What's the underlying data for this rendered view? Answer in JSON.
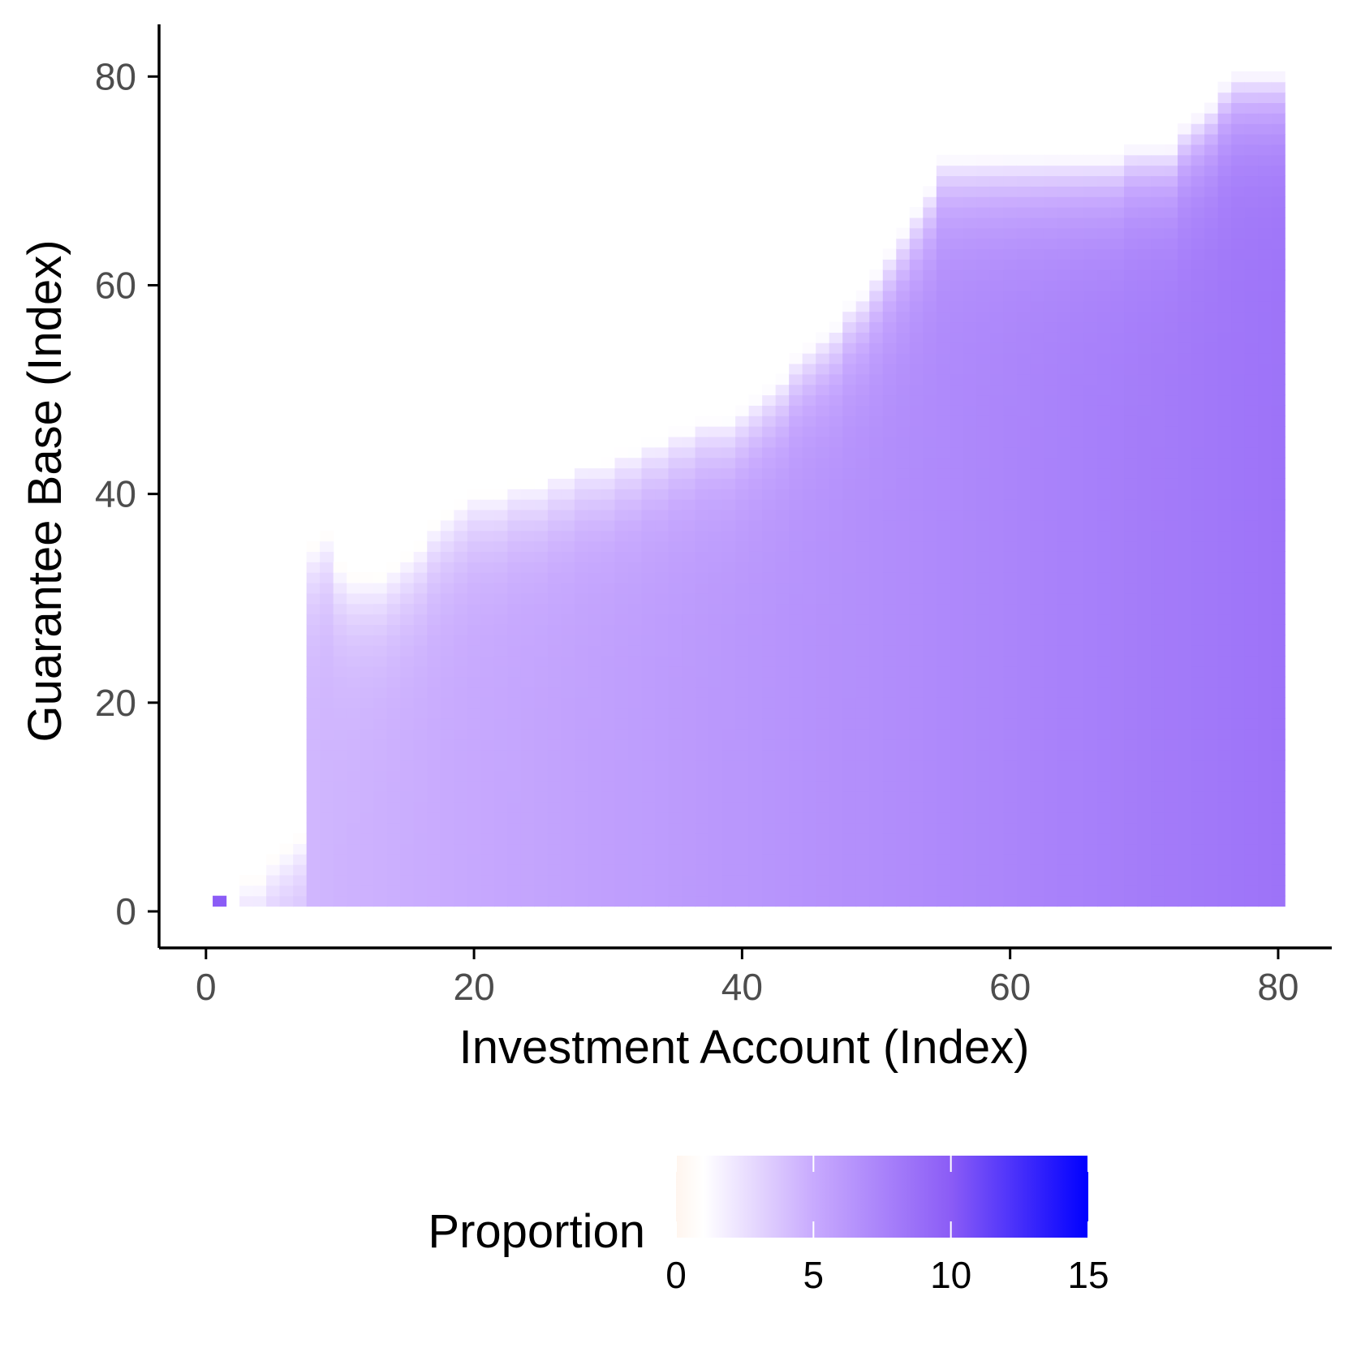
{
  "chart_data": {
    "type": "heatmap",
    "title": "",
    "xlabel": "Investment Account (Index)",
    "ylabel": "Guarantee Base (Index)",
    "xlim": [
      -3.5,
      84
    ],
    "ylim": [
      -3.5,
      85
    ],
    "x_ticks": [
      0,
      20,
      40,
      60,
      80
    ],
    "x_tick_labels": [
      "0",
      "20",
      "40",
      "60",
      "80"
    ],
    "y_ticks": [
      0,
      20,
      40,
      60,
      80
    ],
    "y_tick_labels": [
      "0",
      "20",
      "40",
      "60",
      "80"
    ],
    "grid": false,
    "cells": "one tile per integer x from 1 to 80 and integer y from 1 up to the upper boundary; fill = proportion value",
    "upper_boundary": [
      [
        1,
        1
      ],
      [
        2,
        0
      ],
      [
        3,
        3
      ],
      [
        4,
        3
      ],
      [
        5,
        5
      ],
      [
        6,
        6
      ],
      [
        7,
        7
      ],
      [
        8,
        35
      ],
      [
        9,
        36
      ],
      [
        10,
        33
      ],
      [
        11,
        32
      ],
      [
        12,
        32
      ],
      [
        13,
        32
      ],
      [
        14,
        33
      ],
      [
        15,
        34
      ],
      [
        16,
        35
      ],
      [
        17,
        37
      ],
      [
        18,
        38
      ],
      [
        19,
        39
      ],
      [
        20,
        40
      ],
      [
        21,
        40
      ],
      [
        22,
        40
      ],
      [
        23,
        41
      ],
      [
        24,
        41
      ],
      [
        25,
        41
      ],
      [
        26,
        42
      ],
      [
        27,
        42
      ],
      [
        28,
        43
      ],
      [
        29,
        43
      ],
      [
        30,
        43
      ],
      [
        31,
        44
      ],
      [
        32,
        44
      ],
      [
        33,
        45
      ],
      [
        34,
        45
      ],
      [
        35,
        46
      ],
      [
        36,
        46
      ],
      [
        37,
        47
      ],
      [
        38,
        47
      ],
      [
        39,
        47
      ],
      [
        40,
        48
      ],
      [
        41,
        49
      ],
      [
        42,
        50
      ],
      [
        43,
        51
      ],
      [
        44,
        53
      ],
      [
        45,
        54
      ],
      [
        46,
        55
      ],
      [
        47,
        56
      ],
      [
        48,
        58
      ],
      [
        49,
        59
      ],
      [
        50,
        61
      ],
      [
        51,
        63
      ],
      [
        52,
        65
      ],
      [
        53,
        67
      ],
      [
        54,
        69
      ],
      [
        55,
        72
      ],
      [
        56,
        72
      ],
      [
        57,
        72
      ],
      [
        58,
        72
      ],
      [
        59,
        72
      ],
      [
        60,
        72
      ],
      [
        61,
        72
      ],
      [
        62,
        72
      ],
      [
        63,
        72
      ],
      [
        64,
        72
      ],
      [
        65,
        72
      ],
      [
        66,
        72
      ],
      [
        67,
        72
      ],
      [
        68,
        72
      ],
      [
        69,
        73
      ],
      [
        70,
        73
      ],
      [
        71,
        73
      ],
      [
        72,
        73
      ],
      [
        73,
        75
      ],
      [
        74,
        76
      ],
      [
        75,
        77
      ],
      [
        76,
        79
      ],
      [
        77,
        80
      ],
      [
        78,
        80
      ],
      [
        79,
        80
      ],
      [
        80,
        80
      ]
    ],
    "legend": {
      "title": "Proportion",
      "position": "bottom",
      "range": [
        0,
        15
      ],
      "ticks": [
        0,
        5,
        10,
        15
      ],
      "tick_labels": [
        "0",
        "5",
        "10",
        "15"
      ],
      "colors": [
        "#fff5ee",
        "#ffffff",
        "#c8aafe",
        "#8b5cf6",
        "#0000ff"
      ],
      "color_stops": [
        0,
        1,
        5,
        10,
        15
      ]
    },
    "colors": {
      "axis": "#000000",
      "tick_label": "#4d4d4d",
      "title": "#000000"
    }
  }
}
